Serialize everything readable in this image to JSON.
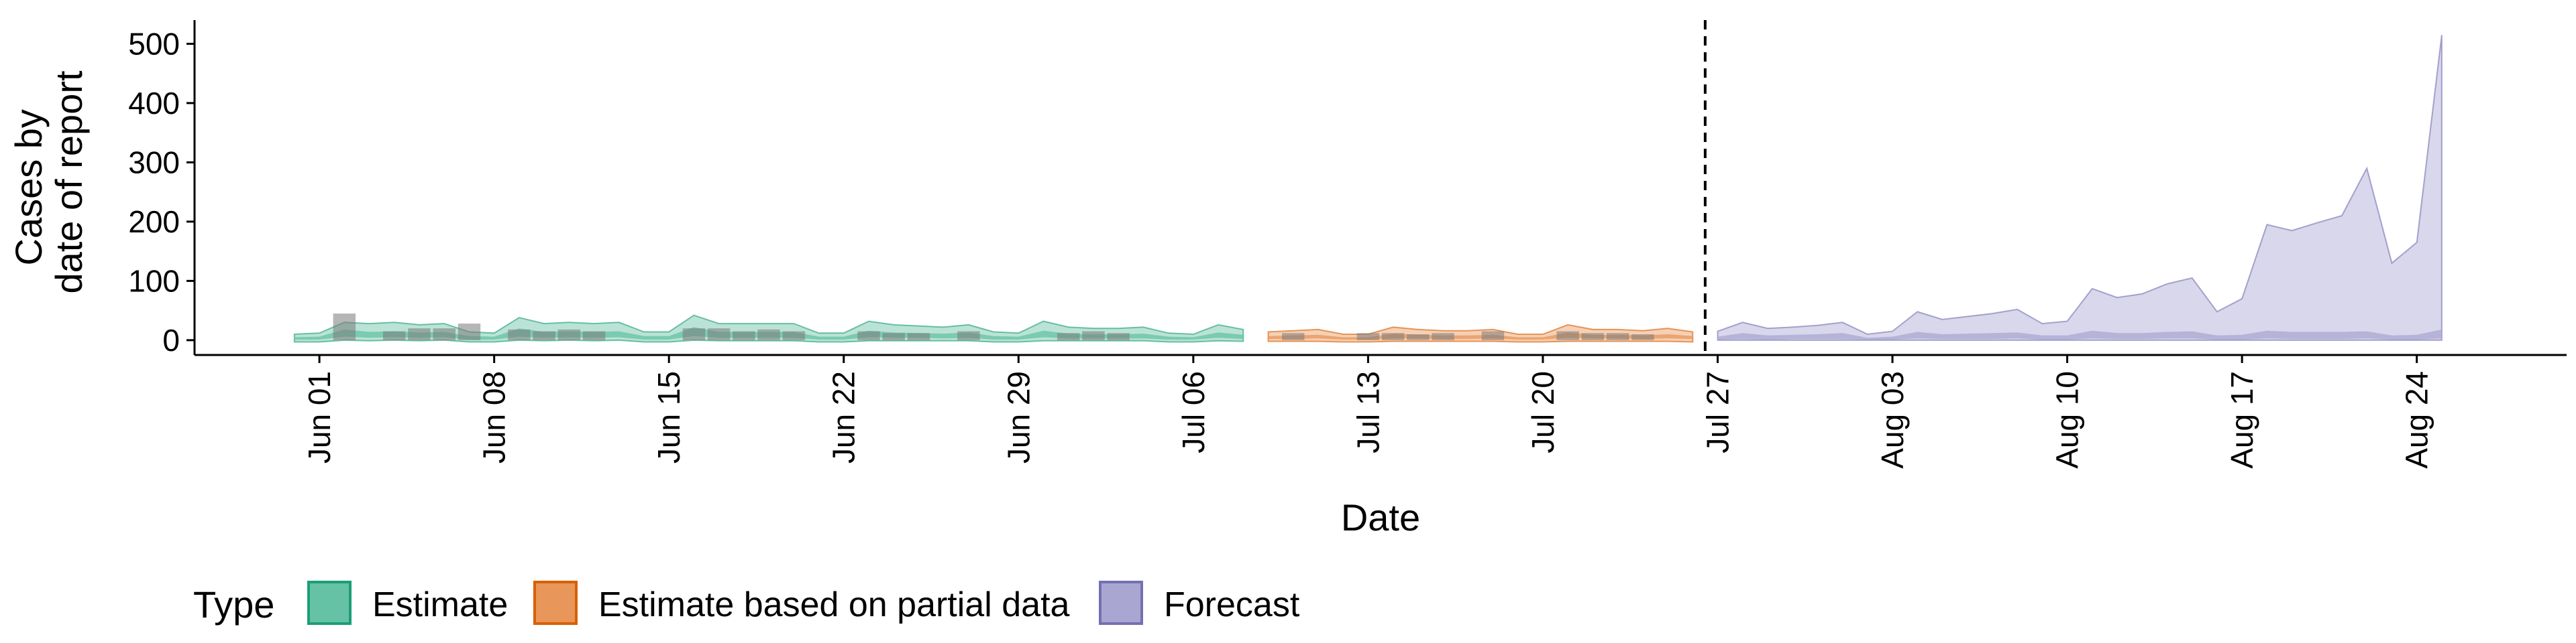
{
  "chart_data": {
    "type": "area",
    "title": "",
    "xlabel": "Date",
    "ylabel_lines": [
      "Cases by",
      "date of report"
    ],
    "ylim": [
      -25,
      540
    ],
    "y_ticks": [
      0,
      100,
      200,
      300,
      400,
      500
    ],
    "x_range": [
      "2020-05-27",
      "2020-08-30"
    ],
    "x_ticks": [
      {
        "date": "2020-06-01",
        "label": "Jun 01"
      },
      {
        "date": "2020-06-08",
        "label": "Jun 08"
      },
      {
        "date": "2020-06-15",
        "label": "Jun 15"
      },
      {
        "date": "2020-06-22",
        "label": "Jun 22"
      },
      {
        "date": "2020-06-29",
        "label": "Jun 29"
      },
      {
        "date": "2020-07-06",
        "label": "Jul 06"
      },
      {
        "date": "2020-07-13",
        "label": "Jul 13"
      },
      {
        "date": "2020-07-20",
        "label": "Jul 20"
      },
      {
        "date": "2020-07-27",
        "label": "Jul 27"
      },
      {
        "date": "2020-08-03",
        "label": "Aug 03"
      },
      {
        "date": "2020-08-10",
        "label": "Aug 10"
      },
      {
        "date": "2020-08-17",
        "label": "Aug 17"
      },
      {
        "date": "2020-08-24",
        "label": "Aug 24"
      }
    ],
    "forecast_date": "2020-07-26",
    "legend": {
      "title": "Type",
      "position": "bottom",
      "items": [
        {
          "label": "Estimate",
          "fill": "#66c2a5",
          "stroke": "#1b9e77"
        },
        {
          "label": "Estimate based on partial data",
          "fill": "#e8965a",
          "stroke": "#d95f02"
        },
        {
          "label": "Forecast",
          "fill": "#a9a7d2",
          "stroke": "#7570b3"
        }
      ]
    },
    "observed": {
      "color": "#7a7a7a",
      "dates": [
        "2020-06-02",
        "2020-06-04",
        "2020-06-05",
        "2020-06-06",
        "2020-06-07",
        "2020-06-09",
        "2020-06-10",
        "2020-06-11",
        "2020-06-12",
        "2020-06-16",
        "2020-06-17",
        "2020-06-18",
        "2020-06-19",
        "2020-06-20",
        "2020-06-23",
        "2020-06-24",
        "2020-06-25",
        "2020-06-27",
        "2020-07-01",
        "2020-07-02",
        "2020-07-03",
        "2020-07-10",
        "2020-07-13",
        "2020-07-14",
        "2020-07-15",
        "2020-07-16",
        "2020-07-18",
        "2020-07-21",
        "2020-07-22",
        "2020-07-23",
        "2020-07-24"
      ],
      "values": [
        45,
        15,
        20,
        20,
        28,
        18,
        15,
        18,
        15,
        20,
        20,
        15,
        18,
        15,
        15,
        12,
        12,
        15,
        12,
        15,
        12,
        12,
        12,
        12,
        10,
        12,
        15,
        15,
        12,
        12,
        10
      ]
    },
    "series": [
      {
        "name": "Estimate",
        "fill": "#66c2a5",
        "stroke": "#1b9e77",
        "dates": [
          "2020-05-31",
          "2020-06-01",
          "2020-06-02",
          "2020-06-03",
          "2020-06-04",
          "2020-06-05",
          "2020-06-06",
          "2020-06-07",
          "2020-06-08",
          "2020-06-09",
          "2020-06-10",
          "2020-06-11",
          "2020-06-12",
          "2020-06-13",
          "2020-06-14",
          "2020-06-15",
          "2020-06-16",
          "2020-06-17",
          "2020-06-18",
          "2020-06-19",
          "2020-06-20",
          "2020-06-21",
          "2020-06-22",
          "2020-06-23",
          "2020-06-24",
          "2020-06-25",
          "2020-06-26",
          "2020-06-27",
          "2020-06-28",
          "2020-06-29",
          "2020-06-30",
          "2020-07-01",
          "2020-07-02",
          "2020-07-03",
          "2020-07-04",
          "2020-07-05",
          "2020-07-06",
          "2020-07-07",
          "2020-07-08"
        ],
        "upper": [
          10,
          12,
          30,
          28,
          30,
          26,
          28,
          14,
          12,
          38,
          28,
          30,
          28,
          30,
          14,
          14,
          42,
          28,
          28,
          28,
          28,
          12,
          12,
          32,
          26,
          24,
          22,
          26,
          14,
          12,
          32,
          22,
          20,
          20,
          22,
          12,
          10,
          26,
          18
        ],
        "lower": [
          -3,
          -3,
          0,
          -1,
          0,
          -1,
          0,
          -3,
          -3,
          0,
          -1,
          0,
          -1,
          0,
          -3,
          -3,
          0,
          -1,
          -1,
          -1,
          -1,
          -3,
          -3,
          -1,
          -1,
          -1,
          -1,
          -1,
          -3,
          -3,
          -1,
          -1,
          -1,
          -1,
          -1,
          -3,
          -3,
          -1,
          -2
        ],
        "inner_upper": [
          5,
          6,
          18,
          14,
          15,
          13,
          14,
          7,
          6,
          20,
          14,
          15,
          14,
          15,
          7,
          7,
          22,
          14,
          14,
          14,
          14,
          6,
          6,
          16,
          13,
          12,
          11,
          13,
          7,
          6,
          16,
          11,
          10,
          10,
          11,
          6,
          5,
          13,
          9
        ],
        "inner_lower": [
          1,
          1,
          6,
          4,
          5,
          4,
          5,
          1,
          1,
          6,
          4,
          5,
          4,
          5,
          1,
          1,
          7,
          4,
          4,
          4,
          4,
          1,
          1,
          5,
          4,
          4,
          3,
          4,
          1,
          1,
          5,
          3,
          3,
          3,
          3,
          1,
          1,
          4,
          2
        ]
      },
      {
        "name": "Estimate based on partial data",
        "fill": "#e8965a",
        "stroke": "#d95f02",
        "dates": [
          "2020-07-09",
          "2020-07-10",
          "2020-07-11",
          "2020-07-12",
          "2020-07-13",
          "2020-07-14",
          "2020-07-15",
          "2020-07-16",
          "2020-07-17",
          "2020-07-18",
          "2020-07-19",
          "2020-07-20",
          "2020-07-21",
          "2020-07-22",
          "2020-07-23",
          "2020-07-24",
          "2020-07-25",
          "2020-07-26"
        ],
        "upper": [
          14,
          16,
          18,
          10,
          10,
          22,
          18,
          16,
          16,
          18,
          10,
          10,
          26,
          18,
          18,
          16,
          20,
          14
        ],
        "lower": [
          -2,
          -2,
          -2,
          -3,
          -3,
          -2,
          -2,
          -2,
          -2,
          -2,
          -3,
          -3,
          -2,
          -2,
          -2,
          -2,
          -2,
          -3
        ],
        "inner_upper": [
          7,
          8,
          9,
          5,
          5,
          11,
          9,
          8,
          8,
          9,
          5,
          5,
          13,
          9,
          9,
          8,
          10,
          7
        ],
        "inner_lower": [
          2,
          2,
          3,
          1,
          1,
          3,
          3,
          2,
          2,
          3,
          1,
          1,
          4,
          3,
          3,
          2,
          3,
          2
        ]
      },
      {
        "name": "Forecast",
        "fill": "#a9a7d2",
        "stroke": "#7570b3",
        "dates": [
          "2020-07-27",
          "2020-07-28",
          "2020-07-29",
          "2020-07-30",
          "2020-07-31",
          "2020-08-01",
          "2020-08-02",
          "2020-08-03",
          "2020-08-04",
          "2020-08-05",
          "2020-08-06",
          "2020-08-07",
          "2020-08-08",
          "2020-08-09",
          "2020-08-10",
          "2020-08-11",
          "2020-08-12",
          "2020-08-13",
          "2020-08-14",
          "2020-08-15",
          "2020-08-16",
          "2020-08-17",
          "2020-08-18",
          "2020-08-19",
          "2020-08-20",
          "2020-08-21",
          "2020-08-22",
          "2020-08-23",
          "2020-08-24",
          "2020-08-25"
        ],
        "upper": [
          15,
          30,
          20,
          22,
          25,
          30,
          10,
          15,
          48,
          35,
          40,
          45,
          52,
          28,
          32,
          87,
          72,
          78,
          95,
          105,
          48,
          70,
          195,
          185,
          198,
          210,
          290,
          130,
          165,
          515
        ],
        "lower": [
          0,
          0,
          0,
          0,
          0,
          0,
          0,
          0,
          0,
          0,
          0,
          0,
          0,
          0,
          0,
          0,
          0,
          0,
          0,
          0,
          0,
          0,
          0,
          0,
          0,
          0,
          0,
          0,
          0,
          0
        ],
        "inner_upper": [
          6,
          12,
          8,
          9,
          10,
          12,
          4,
          6,
          14,
          10,
          11,
          12,
          13,
          8,
          8,
          16,
          12,
          12,
          14,
          15,
          8,
          9,
          16,
          14,
          14,
          14,
          15,
          8,
          9,
          18
        ],
        "inner_lower": [
          1,
          2,
          1,
          2,
          2,
          2,
          1,
          1,
          3,
          2,
          2,
          2,
          3,
          1,
          1,
          3,
          2,
          2,
          3,
          3,
          1,
          1,
          3,
          2,
          2,
          2,
          3,
          1,
          1,
          3
        ]
      }
    ]
  }
}
